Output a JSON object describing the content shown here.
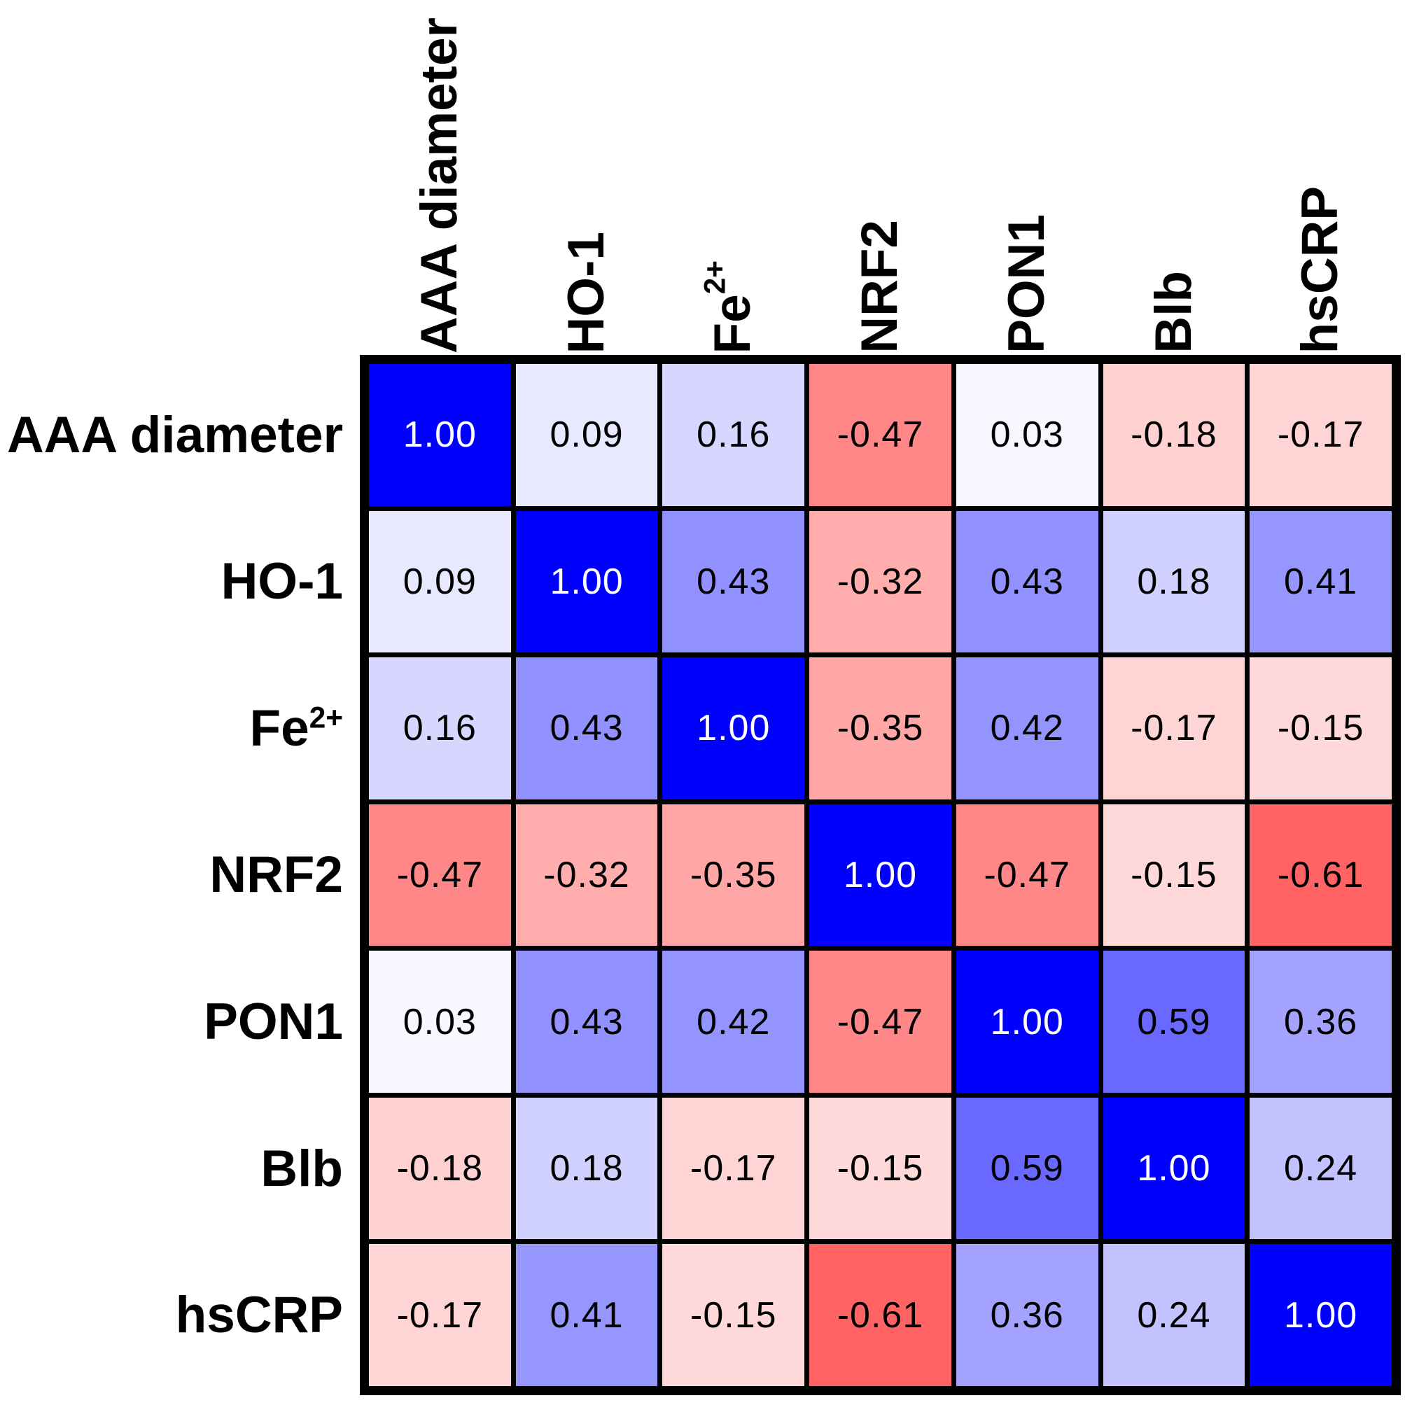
{
  "chart_data": {
    "type": "heatmap",
    "subtype": "correlation-matrix",
    "title": "",
    "variables": [
      {
        "text": "AAA diameter",
        "sup": ""
      },
      {
        "text": "HO-1",
        "sup": ""
      },
      {
        "text": "Fe",
        "sup": "2+"
      },
      {
        "text": "NRF2",
        "sup": ""
      },
      {
        "text": "PON1",
        "sup": ""
      },
      {
        "text": "Blb",
        "sup": ""
      },
      {
        "text": "hsCRP",
        "sup": ""
      }
    ],
    "matrix": [
      [
        1.0,
        0.09,
        0.16,
        -0.47,
        0.03,
        -0.18,
        -0.17
      ],
      [
        0.09,
        1.0,
        0.43,
        -0.32,
        0.43,
        0.18,
        0.41
      ],
      [
        0.16,
        0.43,
        1.0,
        -0.35,
        0.42,
        -0.17,
        -0.15
      ],
      [
        -0.47,
        -0.32,
        -0.35,
        1.0,
        -0.47,
        -0.15,
        -0.61
      ],
      [
        0.03,
        0.43,
        0.42,
        -0.47,
        1.0,
        0.59,
        0.36
      ],
      [
        -0.18,
        0.18,
        -0.17,
        -0.15,
        0.59,
        1.0,
        0.24
      ],
      [
        -0.17,
        0.41,
        -0.15,
        -0.61,
        0.36,
        0.24,
        1.0
      ]
    ],
    "value_decimals": 2,
    "colormap": {
      "positive_end": "#0000FF",
      "negative_end": "#FF0000",
      "zero": "#FFFFFF"
    },
    "grid_color": "#000000",
    "cell_text_color": "#000000",
    "diagonal_text_color": "#FFFFFF",
    "white_text_threshold": 0.995,
    "legend_position": "none",
    "grid_on": true
  }
}
